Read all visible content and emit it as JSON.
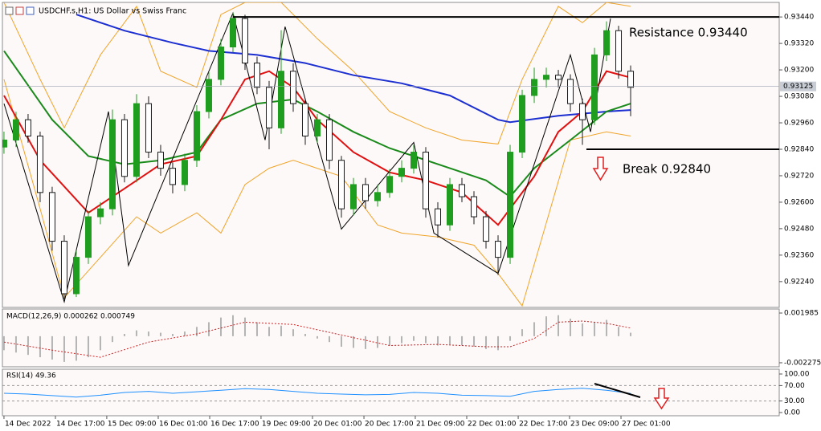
{
  "chart_data": [
    {
      "type": "candlestick",
      "title": "USDCHF.s,H1: US Dollar vs Swiss Franc",
      "up_color": "#1f9d1f",
      "down_color": "#1a1a1a",
      "open": [
        0.9285,
        0.92882,
        0.92974,
        0.929,
        0.92644,
        0.92423,
        0.92185,
        0.9235,
        0.92534,
        0.9257,
        0.92974,
        0.92717,
        0.93047,
        0.92827,
        0.92754,
        0.9268,
        0.9279,
        0.93011,
        0.93157,
        0.93304,
        0.93433,
        0.93231,
        0.93121,
        0.92937,
        0.93194,
        0.93047,
        0.929,
        0.92974,
        0.9279,
        0.9257,
        0.9268,
        0.92607,
        0.92644,
        0.92717,
        0.92754,
        0.92827,
        0.9257,
        0.92497,
        0.9268,
        0.92625,
        0.92534,
        0.92423,
        0.9235,
        0.92827,
        0.93084,
        0.93157,
        0.93176,
        0.93157,
        0.93047,
        0.92974,
        0.93268,
        0.93378,
        0.93194
      ],
      "high": [
        0.9292,
        0.9301,
        0.93,
        0.9292,
        0.9267,
        0.9245,
        0.9238,
        0.9256,
        0.926,
        0.9302,
        0.93,
        0.9309,
        0.9308,
        0.9286,
        0.9278,
        0.9282,
        0.9304,
        0.9319,
        0.9334,
        0.9346,
        0.9345,
        0.9326,
        0.9315,
        0.9338,
        0.9323,
        0.9307,
        0.93,
        0.93,
        0.9281,
        0.9271,
        0.9271,
        0.9268,
        0.9275,
        0.9279,
        0.9286,
        0.9285,
        0.926,
        0.9271,
        0.9271,
        0.9265,
        0.9256,
        0.9245,
        0.9286,
        0.9311,
        0.9321,
        0.9321,
        0.932,
        0.9318,
        0.9307,
        0.933,
        0.9342,
        0.934,
        0.9322
      ],
      "low": [
        0.9282,
        0.9285,
        0.9287,
        0.926,
        0.9238,
        0.9216,
        0.9217,
        0.9232,
        0.925,
        0.9254,
        0.9269,
        0.9269,
        0.928,
        0.9272,
        0.9264,
        0.9265,
        0.9276,
        0.9298,
        0.9313,
        0.9328,
        0.932,
        0.9309,
        0.9284,
        0.9291,
        0.9301,
        0.9286,
        0.9287,
        0.9275,
        0.9253,
        0.9254,
        0.9257,
        0.9258,
        0.9262,
        0.9269,
        0.9273,
        0.9253,
        0.9244,
        0.9247,
        0.926,
        0.925,
        0.9239,
        0.9227,
        0.9232,
        0.928,
        0.9305,
        0.9312,
        0.9312,
        0.9301,
        0.9286,
        0.9295,
        0.9324,
        0.9316,
        0.9299
      ],
      "close": [
        0.92882,
        0.92974,
        0.929,
        0.92644,
        0.92423,
        0.92185,
        0.9235,
        0.92534,
        0.9257,
        0.92974,
        0.92717,
        0.93047,
        0.92827,
        0.92754,
        0.9268,
        0.9279,
        0.93011,
        0.93157,
        0.93304,
        0.93433,
        0.93231,
        0.93121,
        0.92937,
        0.93194,
        0.93047,
        0.929,
        0.92974,
        0.9279,
        0.9257,
        0.9268,
        0.92607,
        0.92644,
        0.92717,
        0.92754,
        0.92827,
        0.9257,
        0.92497,
        0.9268,
        0.92625,
        0.92534,
        0.92423,
        0.9235,
        0.92827,
        0.93084,
        0.93157,
        0.93176,
        0.93157,
        0.93047,
        0.92974,
        0.93268,
        0.93378,
        0.93194,
        0.93121
      ],
      "series": [
        {
          "color": "#f0a428",
          "width": 1,
          "x": [
            0,
            3,
            5,
            8,
            11,
            13,
            16,
            18,
            20,
            23,
            26,
            29,
            32,
            35,
            38,
            41,
            43,
            46,
            48,
            50,
            52
          ],
          "values": [
            0.93506,
            0.93157,
            0.92937,
            0.93268,
            0.93488,
            0.93194,
            0.93121,
            0.93451,
            0.93506,
            0.93506,
            0.93341,
            0.93194,
            0.93011,
            0.92937,
            0.92882,
            0.92864,
            0.93157,
            0.93488,
            0.93414,
            0.93506,
            0.93488
          ]
        },
        {
          "color": "#f0a428",
          "width": 1,
          "x": [
            0,
            3,
            5,
            8,
            11,
            13,
            16,
            18,
            20,
            22,
            24,
            28,
            31,
            33,
            36,
            39,
            41,
            43,
            47,
            50,
            52
          ],
          "values": [
            0.93157,
            0.9257,
            0.92167,
            0.9235,
            0.92534,
            0.9246,
            0.92552,
            0.9246,
            0.9268,
            0.92754,
            0.9279,
            0.92717,
            0.92497,
            0.9246,
            0.92442,
            0.92405,
            0.92277,
            0.9213,
            0.92882,
            0.92919,
            0.929
          ]
        },
        {
          "color": "#1c2fd0",
          "width": 2,
          "x": [
            6,
            10,
            14,
            17,
            21,
            25,
            29,
            33,
            37,
            41,
            42,
            46,
            50,
            52
          ],
          "values": [
            0.93451,
            0.93378,
            0.93323,
            0.93286,
            0.93268,
            0.93231,
            0.93176,
            0.93139,
            0.93084,
            0.92974,
            0.92963,
            0.92992,
            0.93011,
            0.93018
          ]
        },
        {
          "color": "#1a8a1a",
          "width": 2,
          "x": [
            0,
            4,
            7,
            10,
            13,
            16,
            18,
            21,
            24,
            26,
            29,
            32,
            34,
            37,
            40,
            42,
            44,
            47,
            50,
            52
          ],
          "values": [
            0.93286,
            0.92974,
            0.92809,
            0.92772,
            0.9279,
            0.92827,
            0.92974,
            0.93047,
            0.93066,
            0.93011,
            0.92919,
            0.92845,
            0.92809,
            0.92754,
            0.92699,
            0.92625,
            0.92754,
            0.92882,
            0.93011,
            0.93047
          ]
        },
        {
          "color": "#e01010",
          "width": 2,
          "x": [
            0,
            3,
            7,
            10,
            13,
            16,
            18,
            20,
            22,
            24,
            26,
            29,
            32,
            35,
            38,
            41,
            44,
            46,
            48,
            50,
            52
          ],
          "values": [
            0.93084,
            0.9279,
            0.92552,
            0.92662,
            0.92772,
            0.92809,
            0.92974,
            0.93157,
            0.93194,
            0.93121,
            0.92974,
            0.92827,
            0.92735,
            0.92699,
            0.92644,
            0.92497,
            0.92717,
            0.92919,
            0.93011,
            0.93194,
            0.93165
          ]
        },
        {
          "color": "#000000",
          "width": 1,
          "x": [
            0,
            5,
            8.67,
            10.33,
            19,
            21.67,
            23.33,
            28,
            34,
            35.67,
            41,
            47,
            48.67,
            50.33
          ],
          "values": [
            0.93047,
            0.92148,
            0.93011,
            0.92313,
            0.93458,
            0.92882,
            0.93396,
            0.92478,
            0.92871,
            0.9246,
            0.92277,
            0.93268,
            0.92919,
            0.93433
          ]
        }
      ],
      "levels": [
        {
          "value": 0.9344,
          "x": 19,
          "label": "Resistance 0.93440"
        },
        {
          "value": 0.9284,
          "x": 48.33,
          "label": "Break 0.92840"
        }
      ],
      "current_price": {
        "value": 0.93125,
        "label": "0.93125"
      },
      "xlim": [
        -0.13,
        64.33
      ],
      "xticks": [
        {
          "value": 0,
          "label": "14 Dec 2022"
        },
        {
          "value": 4.27,
          "label": "14 Dec 17:00"
        },
        {
          "value": 8.53,
          "label": "15 Dec 09:00"
        },
        {
          "value": 12.8,
          "label": "16 Dec 01:00"
        },
        {
          "value": 17.07,
          "label": "16 Dec 17:00"
        },
        {
          "value": 21.33,
          "label": "19 Dec 09:00"
        },
        {
          "value": 25.6,
          "label": "20 Dec 01:00"
        },
        {
          "value": 29.87,
          "label": "20 Dec 17:00"
        },
        {
          "value": 34.13,
          "label": "21 Dec 09:00"
        },
        {
          "value": 38.4,
          "label": "22 Dec 01:00"
        },
        {
          "value": 42.67,
          "label": "22 Dec 17:00"
        },
        {
          "value": 46.93,
          "label": "23 Dec 09:00"
        },
        {
          "value": 51.2,
          "label": "27 Dec 01:00"
        }
      ],
      "ylim": [
        0.92123,
        0.93506
      ],
      "yticks": [
        {
          "value": 0.9344,
          "label": "0.93440"
        },
        {
          "value": 0.9332,
          "label": "0.93320"
        },
        {
          "value": 0.932,
          "label": "0.93200"
        },
        {
          "value": 0.9308,
          "label": "0.93080"
        },
        {
          "value": 0.9296,
          "label": "0.92960"
        },
        {
          "value": 0.9284,
          "label": "0.92840"
        },
        {
          "value": 0.9272,
          "label": "0.92720"
        },
        {
          "value": 0.926,
          "label": "0.92600"
        },
        {
          "value": 0.9248,
          "label": "0.92480"
        },
        {
          "value": 0.9236,
          "label": "0.92360"
        },
        {
          "value": 0.9224,
          "label": "0.92240"
        }
      ]
    },
    {
      "type": "histogram_line",
      "title": "MACD(12,26,9) 0.000262 0.000749",
      "color": "#b4b4b4",
      "values": [
        -0.0012,
        -0.0014,
        -0.0016,
        -0.0018,
        -0.002,
        -0.0022,
        -0.0021,
        -0.0018,
        -0.0012,
        -0.0005,
        0.0002,
        0.0005,
        0.0004,
        0.0003,
        0.0002,
        0.0004,
        0.0008,
        0.0012,
        0.0016,
        0.0018,
        0.0016,
        0.0012,
        0.0008,
        0.0009,
        0.0006,
        0.0002,
        -0.0002,
        -0.0005,
        -0.0009,
        -0.001,
        -0.0011,
        -0.001,
        -0.0008,
        -0.0006,
        -0.0004,
        -0.0006,
        -0.0008,
        -0.0007,
        -0.0008,
        -0.0009,
        -0.0011,
        -0.0012,
        -0.0004,
        0.0006,
        0.0012,
        0.0017,
        0.0018,
        0.0015,
        0.0011,
        0.0012,
        0.0014,
        0.0008,
        0.0003
      ],
      "series": [
        {
          "color": "#d02020",
          "dashed": true,
          "x": [
            0,
            4,
            8,
            12,
            16,
            20,
            24,
            28,
            32,
            36,
            40,
            42,
            44,
            46,
            48,
            50,
            52
          ],
          "values": [
            -0.0005,
            -0.0012,
            -0.0018,
            -0.0005,
            0.0002,
            0.0012,
            0.001,
            0.0001,
            -0.0008,
            -0.0007,
            -0.0009,
            -0.0009,
            -0.0002,
            0.0012,
            0.0013,
            0.0011,
            0.0007
          ]
        }
      ],
      "ylim": [
        -0.00262,
        0.00233
      ],
      "yticks": [
        0.001985,
        -0.002275
      ]
    },
    {
      "type": "line",
      "title": "RSI(14) 49.36",
      "series": [
        {
          "color": "#1e90ff",
          "width": 1,
          "x": [
            0,
            2,
            4,
            6,
            8,
            10,
            12,
            14,
            16,
            18,
            20,
            22,
            24,
            26,
            28,
            30,
            32,
            34,
            36,
            38,
            40,
            42,
            44,
            46,
            48,
            50,
            52
          ],
          "values": [
            50,
            48,
            44,
            40,
            45,
            52,
            55,
            50,
            54,
            58,
            62,
            60,
            55,
            50,
            48,
            46,
            47,
            52,
            50,
            45,
            44,
            42,
            55,
            60,
            63,
            58,
            49.36
          ]
        }
      ],
      "trendline": {
        "color": "#000000",
        "x": [
          49,
          52.8
        ],
        "values": [
          75,
          39.6
        ]
      },
      "levels": [
        70,
        30
      ],
      "ylim": [
        -8.3,
        112.5
      ],
      "yticks": [
        {
          "value": 100,
          "label": "100.00"
        },
        {
          "value": 70,
          "label": "70.00"
        },
        {
          "value": 30,
          "label": "30.00"
        },
        {
          "value": 0,
          "label": "0.00"
        }
      ]
    }
  ]
}
